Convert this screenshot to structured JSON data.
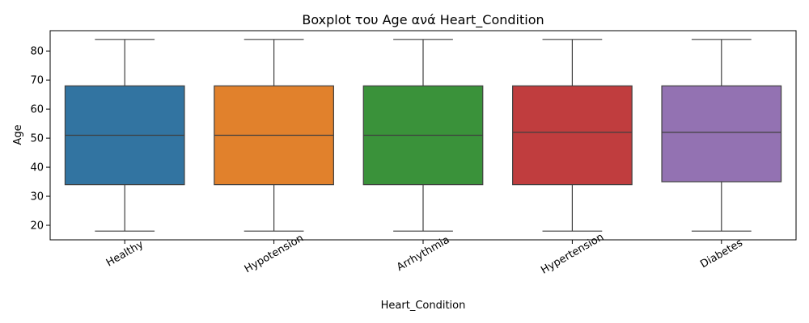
{
  "chart_data": {
    "type": "box",
    "title": "Boxplot του Age ανά Heart_Condition",
    "xlabel": "Heart_Condition",
    "ylabel": "Age",
    "ylim": [
      15,
      87
    ],
    "yticks": [
      20,
      30,
      40,
      50,
      60,
      70,
      80
    ],
    "grid": false,
    "categories": [
      "Healthy",
      "Hypotension",
      "Arrhythmia",
      "Hypertension",
      "Diabetes"
    ],
    "boxes": [
      {
        "category": "Healthy",
        "min": 18,
        "q1": 34,
        "median": 51,
        "q3": 68,
        "max": 84,
        "color": "#3274a1"
      },
      {
        "category": "Hypotension",
        "min": 18,
        "q1": 34,
        "median": 51,
        "q3": 68,
        "max": 84,
        "color": "#e1812c"
      },
      {
        "category": "Arrhythmia",
        "min": 18,
        "q1": 34,
        "median": 51,
        "q3": 68,
        "max": 84,
        "color": "#3a923a"
      },
      {
        "category": "Hypertension",
        "min": 18,
        "q1": 34,
        "median": 52,
        "q3": 68,
        "max": 84,
        "color": "#c03d3e"
      },
      {
        "category": "Diabetes",
        "min": 18,
        "q1": 35,
        "median": 52,
        "q3": 68,
        "max": 84,
        "color": "#9372b2"
      }
    ]
  }
}
